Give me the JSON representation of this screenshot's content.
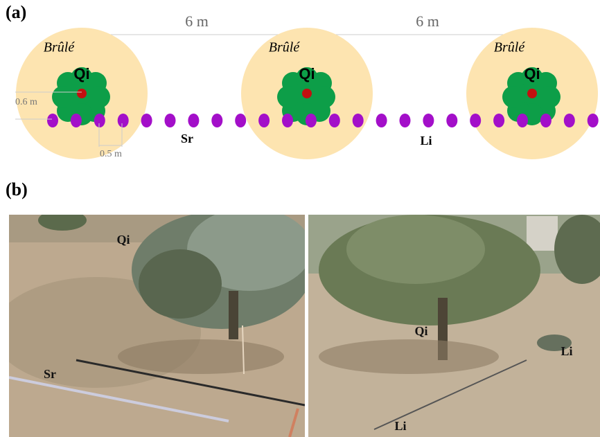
{
  "panel_a": {
    "label": "(a)",
    "dimensions": [
      "6 m",
      "6 m"
    ],
    "zones": [
      {
        "burn_label": "Brûlé",
        "plant_label": "Qi"
      },
      {
        "burn_label": "Brûlé",
        "plant_label": "Qi"
      },
      {
        "burn_label": "Brûlé",
        "plant_label": "Qi"
      }
    ],
    "height_label": "0.6 m",
    "spacing_label": "0.5 m",
    "row_labels": [
      "Sr",
      "Li"
    ]
  },
  "panel_b": {
    "label": "(b)",
    "photos": [
      {
        "labels": [
          "Qi",
          "Sr"
        ]
      },
      {
        "labels": [
          "Qi",
          "Li",
          "Li"
        ]
      }
    ]
  }
}
